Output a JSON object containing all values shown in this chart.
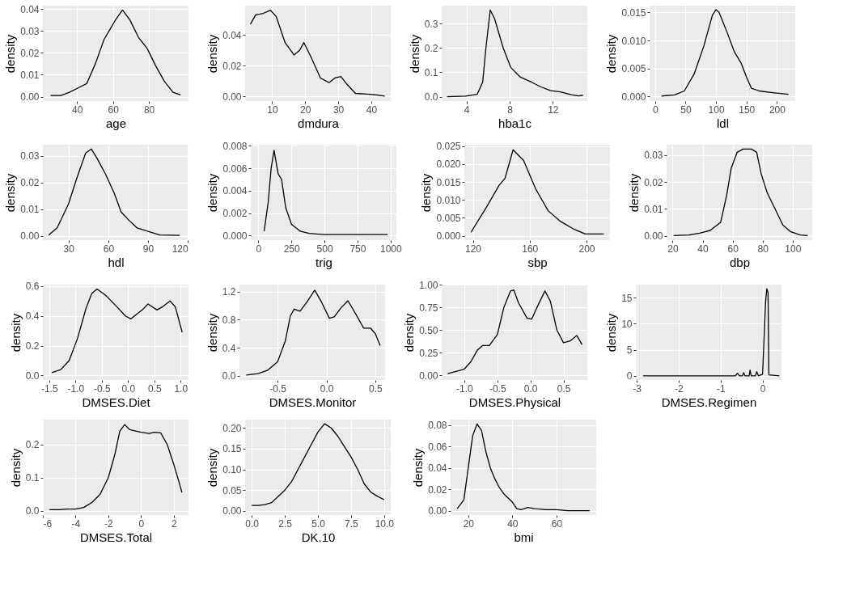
{
  "chart_data": [
    {
      "type": "line",
      "xlabel": "age",
      "ylabel": "density",
      "color": "#000000",
      "grid": true,
      "xlim": [
        21,
        102
      ],
      "ylim": [
        -0.002,
        0.0415
      ],
      "xticks": [
        40,
        60,
        80
      ],
      "yticks": [
        {
          "value": 0,
          "label": "0.00"
        },
        0.01,
        0.02,
        0.03,
        0.04
      ],
      "x": [
        25.3,
        31,
        35.8,
        40.6,
        45.4,
        50.2,
        55,
        61.4,
        65.3,
        69.4,
        74.2,
        79,
        83.8,
        88.6,
        93.4,
        97.6
      ],
      "values": [
        0.0005,
        0.0005,
        0.002,
        0.004,
        0.006,
        0.015,
        0.026,
        0.035,
        0.0395,
        0.035,
        0.027,
        0.022,
        0.014,
        0.007,
        0.002,
        0.0008
      ]
    },
    {
      "type": "line",
      "xlabel": "dmdura",
      "ylabel": "density",
      "color": "#000000",
      "grid": true,
      "xlim": [
        1.8,
        45.9
      ],
      "ylim": [
        -0.003,
        0.059
      ],
      "xticks": [
        10,
        20,
        30,
        40
      ],
      "yticks": [
        {
          "value": 0,
          "label": "0.00"
        },
        {
          "value": 0.02,
          "label": "0.02"
        },
        {
          "value": 0.04,
          "label": "0.04"
        }
      ],
      "x": [
        3.4,
        5,
        7.3,
        9.5,
        11.2,
        13.9,
        16.6,
        18.3,
        19.6,
        21.9,
        24.6,
        27.2,
        29,
        30.8,
        32.6,
        35.2,
        38.8,
        41.5,
        44.1
      ],
      "values": [
        0.047,
        0.053,
        0.054,
        0.056,
        0.052,
        0.035,
        0.027,
        0.03,
        0.035,
        0.025,
        0.012,
        0.009,
        0.012,
        0.013,
        0.008,
        0.002,
        0.0015,
        0.001,
        0.0002
      ]
    },
    {
      "type": "line",
      "xlabel": "hba1c",
      "ylabel": "density",
      "color": "#000000",
      "grid": true,
      "xlim": [
        1.7,
        15.2
      ],
      "ylim": [
        -0.018,
        0.373
      ],
      "xticks": [
        4,
        8,
        12
      ],
      "yticks": [
        {
          "value": 0,
          "label": "0.0"
        },
        0.1,
        0.2,
        0.3
      ],
      "x": [
        2.2,
        3.9,
        5.0,
        5.5,
        5.8,
        6.2,
        6.6,
        7.4,
        8.1,
        9.0,
        10.0,
        10.9,
        11.8,
        12.7,
        13.7,
        14.4,
        14.8
      ],
      "values": [
        0.0,
        0.002,
        0.01,
        0.06,
        0.2,
        0.355,
        0.32,
        0.2,
        0.12,
        0.08,
        0.06,
        0.04,
        0.025,
        0.02,
        0.008,
        0.003,
        0.006
      ]
    },
    {
      "type": "line",
      "xlabel": "ldl",
      "ylabel": "density",
      "color": "#000000",
      "grid": true,
      "xlim": [
        -9,
        230
      ],
      "ylim": [
        -0.0008,
        0.0162
      ],
      "xticks": [
        0,
        50,
        100,
        150,
        200
      ],
      "yticks": [
        {
          "value": 0,
          "label": "0.000"
        },
        {
          "value": 0.005,
          "label": "0.005"
        },
        {
          "value": 0.01,
          "label": "0.010"
        },
        {
          "value": 0.015,
          "label": "0.015"
        }
      ],
      "x": [
        10.7,
        32,
        48,
        64,
        80,
        94,
        100,
        105,
        118,
        130,
        141,
        150,
        158,
        171,
        193,
        219
      ],
      "values": [
        0.0001,
        0.0003,
        0.001,
        0.004,
        0.009,
        0.0145,
        0.0155,
        0.015,
        0.0115,
        0.008,
        0.006,
        0.0035,
        0.0015,
        0.001,
        0.0007,
        0.0004
      ]
    },
    {
      "type": "line",
      "xlabel": "hdl",
      "ylabel": "density",
      "color": "#000000",
      "grid": true,
      "xlim": [
        10.6,
        120.5
      ],
      "ylim": [
        -0.0016,
        0.0341
      ],
      "xticks": [
        30,
        60,
        90,
        120
      ],
      "yticks": [
        {
          "value": 0,
          "label": "0.00"
        },
        0.01,
        0.02,
        0.03
      ],
      "x": [
        15,
        21.4,
        30,
        36.5,
        42.9,
        47.2,
        51.5,
        58,
        64.4,
        69.6,
        75.2,
        81.6,
        88,
        98.8,
        113.9
      ],
      "values": [
        0.0003,
        0.003,
        0.012,
        0.022,
        0.031,
        0.0325,
        0.029,
        0.023,
        0.016,
        0.009,
        0.006,
        0.003,
        0.002,
        0.0003,
        0.0002
      ]
    },
    {
      "type": "line",
      "xlabel": "trig",
      "ylabel": "density",
      "color": "#000000",
      "grid": true,
      "xlim": [
        -57,
        1044
      ],
      "ylim": [
        -0.0004,
        0.0081
      ],
      "xticks": [
        0,
        250,
        500,
        750,
        1000
      ],
      "yticks": [
        {
          "value": 0,
          "label": "0.000"
        },
        {
          "value": 0.002,
          "label": "0.002"
        },
        {
          "value": 0.004,
          "label": "0.004"
        },
        {
          "value": 0.006,
          "label": "0.006"
        },
        {
          "value": 0.008,
          "label": "0.008"
        }
      ],
      "x": [
        44,
        75,
        97,
        119,
        150,
        176,
        207,
        251,
        317,
        383,
        493,
        714,
        978
      ],
      "values": [
        0.0004,
        0.003,
        0.006,
        0.0076,
        0.0055,
        0.005,
        0.0025,
        0.001,
        0.0004,
        0.0002,
        0.0001,
        0.0001,
        0.0001
      ]
    },
    {
      "type": "line",
      "xlabel": "sbp",
      "ylabel": "density",
      "color": "#000000",
      "grid": true,
      "xlim": [
        114,
        216.5
      ],
      "ylim": [
        -0.0012,
        0.0254
      ],
      "xticks": [
        120,
        160,
        200
      ],
      "yticks": [
        {
          "value": 0,
          "label": "0.000"
        },
        {
          "value": 0.005,
          "label": "0.005"
        },
        {
          "value": 0.01,
          "label": "0.010"
        },
        {
          "value": 0.015,
          "label": "0.015"
        },
        {
          "value": 0.02,
          "label": "0.020"
        },
        {
          "value": 0.025,
          "label": "0.025"
        }
      ],
      "x": [
        118.7,
        129.6,
        138.3,
        142.6,
        148.3,
        155.7,
        164.3,
        173,
        181.7,
        190.4,
        199.1,
        212.2
      ],
      "values": [
        0.001,
        0.008,
        0.014,
        0.016,
        0.024,
        0.021,
        0.013,
        0.007,
        0.004,
        0.002,
        0.0005,
        0.0005
      ]
    },
    {
      "type": "line",
      "xlabel": "dbp",
      "ylabel": "density",
      "color": "#000000",
      "grid": true,
      "xlim": [
        16,
        113
      ],
      "ylim": [
        -0.0016,
        0.0338
      ],
      "xticks": [
        20,
        40,
        60,
        80,
        100
      ],
      "yticks": [
        {
          "value": 0,
          "label": "0.00"
        },
        0.01,
        0.02,
        0.03
      ],
      "x": [
        20.7,
        31,
        38,
        45,
        52,
        56,
        59,
        63,
        67,
        72.5,
        76,
        79,
        83,
        86.5,
        90,
        93.4,
        98.7,
        105,
        110
      ],
      "values": [
        0.0001,
        0.0003,
        0.001,
        0.002,
        0.005,
        0.015,
        0.025,
        0.031,
        0.0322,
        0.0322,
        0.031,
        0.023,
        0.016,
        0.012,
        0.008,
        0.004,
        0.0015,
        0.0003,
        0.0001
      ]
    },
    {
      "type": "line",
      "xlabel": "DMSES.Diet",
      "ylabel": "density",
      "color": "#000000",
      "grid": true,
      "xlim": [
        -1.62,
        1.15
      ],
      "ylim": [
        -0.03,
        0.61
      ],
      "xticks": [
        -1.5,
        {
          "value": -1,
          "label": "-1.0"
        },
        -0.5,
        {
          "value": 0,
          "label": "0.0"
        },
        0.5,
        {
          "value": 1,
          "label": "1.0"
        }
      ],
      "yticks": [
        {
          "value": 0,
          "label": "0.0"
        },
        0.2,
        0.4,
        0.6
      ],
      "x": [
        -1.45,
        -1.28,
        -1.12,
        -0.96,
        -0.8,
        -0.69,
        -0.59,
        -0.43,
        -0.21,
        -0.05,
        0.05,
        0.27,
        0.38,
        0.55,
        0.65,
        0.8,
        0.9,
        1.03
      ],
      "values": [
        0.02,
        0.04,
        0.1,
        0.25,
        0.45,
        0.55,
        0.58,
        0.54,
        0.46,
        0.4,
        0.38,
        0.44,
        0.48,
        0.44,
        0.46,
        0.5,
        0.46,
        0.29
      ]
    },
    {
      "type": "line",
      "xlabel": "DMSES.Monitor",
      "ylabel": "density",
      "color": "#000000",
      "grid": true,
      "xlim": [
        -0.89,
        0.6
      ],
      "ylim": [
        -0.06,
        1.3
      ],
      "xticks": [
        -0.5,
        {
          "value": 0,
          "label": "0.0"
        },
        0.5
      ],
      "yticks": [
        {
          "value": 0,
          "label": "0.0"
        },
        0.4,
        0.8,
        1.2
      ],
      "x": [
        -0.82,
        -0.7,
        -0.6,
        -0.5,
        -0.42,
        -0.37,
        -0.33,
        -0.27,
        -0.2,
        -0.12,
        -0.05,
        0.03,
        0.08,
        0.15,
        0.22,
        0.3,
        0.38,
        0.45,
        0.5,
        0.55
      ],
      "values": [
        0.01,
        0.03,
        0.08,
        0.2,
        0.5,
        0.85,
        0.95,
        0.92,
        1.05,
        1.22,
        1.05,
        0.82,
        0.84,
        0.97,
        1.07,
        0.88,
        0.68,
        0.68,
        0.6,
        0.43
      ]
    },
    {
      "type": "line",
      "xlabel": "DMSES.Physical",
      "ylabel": "density",
      "color": "#000000",
      "grid": true,
      "xlim": [
        -1.34,
        0.86
      ],
      "ylim": [
        -0.05,
        1.0
      ],
      "xticks": [
        {
          "value": -1,
          "label": "-1.0"
        },
        -0.5,
        {
          "value": 0,
          "label": "0.0"
        },
        0.5
      ],
      "yticks": [
        {
          "value": 0,
          "label": "0.00"
        },
        0.25,
        {
          "value": 0.5,
          "label": "0.50"
        },
        0.75,
        {
          "value": 1,
          "label": "1.00"
        }
      ],
      "x": [
        -1.25,
        -1.1,
        -1.0,
        -0.9,
        -0.8,
        -0.72,
        -0.62,
        -0.5,
        -0.4,
        -0.3,
        -0.25,
        -0.18,
        -0.05,
        0.02,
        0.1,
        0.22,
        0.3,
        0.4,
        0.5,
        0.6,
        0.7,
        0.78
      ],
      "values": [
        0.02,
        0.05,
        0.07,
        0.15,
        0.28,
        0.33,
        0.33,
        0.45,
        0.75,
        0.93,
        0.94,
        0.8,
        0.63,
        0.62,
        0.75,
        0.93,
        0.82,
        0.5,
        0.36,
        0.38,
        0.44,
        0.34
      ]
    },
    {
      "type": "line",
      "xlabel": "DMSES.Regimen",
      "ylabel": "density",
      "color": "#000000",
      "grid": true,
      "xlim": [
        -3.02,
        0.45
      ],
      "ylim": [
        -0.8,
        17.5
      ],
      "xticks": [
        -3,
        -2,
        -1,
        0
      ],
      "yticks": [
        0,
        5,
        10,
        15
      ],
      "x": [
        -2.85,
        -1.0,
        -0.65,
        -0.6,
        -0.55,
        -0.48,
        -0.45,
        -0.42,
        -0.32,
        -0.3,
        -0.27,
        -0.17,
        -0.14,
        -0.1,
        0.0,
        0.07,
        0.1,
        0.13,
        0.15,
        0.4
      ],
      "values": [
        0,
        0,
        0,
        0.5,
        0,
        0,
        0.6,
        0,
        0,
        1.1,
        0,
        0,
        0.8,
        0,
        0.3,
        14,
        16.7,
        16,
        0.2,
        0
      ]
    },
    {
      "type": "line",
      "xlabel": "DMSES.Total",
      "ylabel": "density",
      "color": "#000000",
      "grid": true,
      "xlim": [
        -6.0,
        2.9
      ],
      "ylim": [
        -0.013,
        0.275
      ],
      "xticks": [
        -6,
        -4,
        -2,
        0,
        2
      ],
      "yticks": [
        {
          "value": 0,
          "label": "0.0"
        },
        0.1,
        0.2
      ],
      "x": [
        -5.6,
        -5,
        -4.5,
        -4,
        -3.5,
        -3,
        -2.5,
        -2,
        -1.6,
        -1.3,
        -1,
        -0.7,
        0,
        0.5,
        0.8,
        1.2,
        1.6,
        2,
        2.3,
        2.5
      ],
      "values": [
        0.003,
        0.003,
        0.005,
        0.005,
        0.01,
        0.025,
        0.05,
        0.1,
        0.17,
        0.24,
        0.26,
        0.245,
        0.237,
        0.233,
        0.237,
        0.235,
        0.2,
        0.14,
        0.09,
        0.055
      ]
    },
    {
      "type": "line",
      "xlabel": "DK.10",
      "ylabel": "density",
      "color": "#000000",
      "grid": true,
      "xlim": [
        -0.5,
        10.5
      ],
      "ylim": [
        -0.01,
        0.22
      ],
      "xticks": [
        {
          "value": 0,
          "label": "0.0"
        },
        2.5,
        {
          "value": 5,
          "label": "5.0"
        },
        7.5,
        {
          "value": 10,
          "label": "10.0"
        }
      ],
      "yticks": [
        {
          "value": 0,
          "label": "0.00"
        },
        0.05,
        {
          "value": 0.1,
          "label": "0.10"
        },
        0.15,
        {
          "value": 0.2,
          "label": "0.20"
        }
      ],
      "x": [
        0,
        0.5,
        1,
        1.5,
        2,
        2.5,
        3,
        3.5,
        4,
        4.5,
        5,
        5.5,
        6,
        6.5,
        7,
        7.5,
        8,
        8.5,
        9,
        9.5,
        10
      ],
      "values": [
        0.013,
        0.013,
        0.015,
        0.02,
        0.035,
        0.05,
        0.07,
        0.1,
        0.13,
        0.16,
        0.19,
        0.21,
        0.2,
        0.18,
        0.155,
        0.13,
        0.1,
        0.065,
        0.045,
        0.035,
        0.027
      ]
    },
    {
      "type": "line",
      "xlabel": "bmi",
      "ylabel": "density",
      "color": "#000000",
      "grid": true,
      "xlim": [
        12,
        78
      ],
      "ylim": [
        -0.004,
        0.085
      ],
      "xticks": [
        20,
        40,
        60
      ],
      "yticks": [
        {
          "value": 0,
          "label": "0.00"
        },
        0.02,
        0.04,
        0.06,
        0.08
      ],
      "x": [
        15,
        18,
        20,
        22,
        24,
        26,
        28,
        30,
        32,
        34,
        36,
        38,
        40,
        42,
        44,
        47,
        50,
        55,
        60,
        65,
        70,
        75
      ],
      "values": [
        0.002,
        0.01,
        0.04,
        0.07,
        0.081,
        0.075,
        0.055,
        0.04,
        0.03,
        0.022,
        0.016,
        0.012,
        0.008,
        0.002,
        0.001,
        0.003,
        0.002,
        0.001,
        0.001,
        0,
        0,
        0
      ]
    }
  ]
}
